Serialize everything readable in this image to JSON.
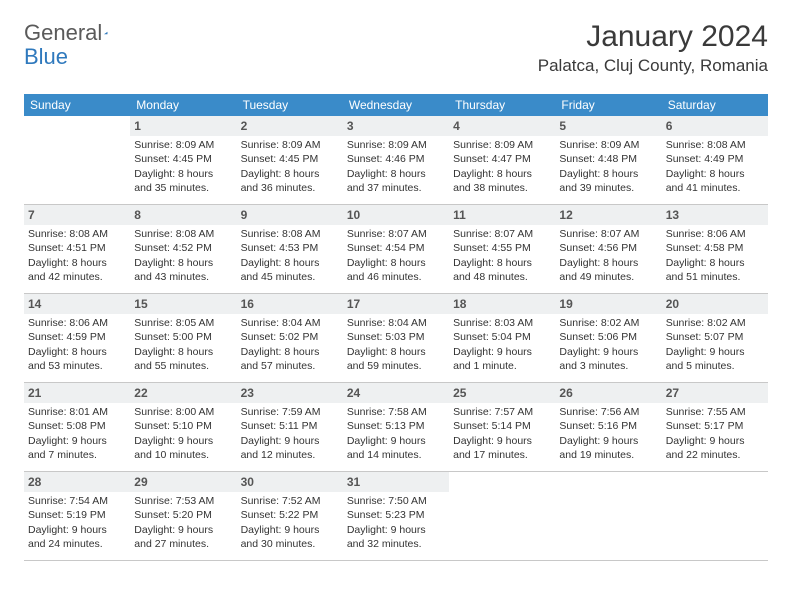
{
  "brand": {
    "part1": "General",
    "part2": "Blue",
    "color": "#2f79bd"
  },
  "title": "January 2024",
  "location": "Palatca, Cluj County, Romania",
  "colors": {
    "header_bg": "#3a8bc9",
    "header_text": "#ffffff",
    "daynum_bg": "#eef0f1",
    "border": "#c8c8c8",
    "text": "#333333"
  },
  "weekdays": [
    "Sunday",
    "Monday",
    "Tuesday",
    "Wednesday",
    "Thursday",
    "Friday",
    "Saturday"
  ],
  "weeks": [
    [
      null,
      {
        "n": "1",
        "sunrise": "8:09 AM",
        "sunset": "4:45 PM",
        "day1": "Daylight: 8 hours",
        "day2": "and 35 minutes."
      },
      {
        "n": "2",
        "sunrise": "8:09 AM",
        "sunset": "4:45 PM",
        "day1": "Daylight: 8 hours",
        "day2": "and 36 minutes."
      },
      {
        "n": "3",
        "sunrise": "8:09 AM",
        "sunset": "4:46 PM",
        "day1": "Daylight: 8 hours",
        "day2": "and 37 minutes."
      },
      {
        "n": "4",
        "sunrise": "8:09 AM",
        "sunset": "4:47 PM",
        "day1": "Daylight: 8 hours",
        "day2": "and 38 minutes."
      },
      {
        "n": "5",
        "sunrise": "8:09 AM",
        "sunset": "4:48 PM",
        "day1": "Daylight: 8 hours",
        "day2": "and 39 minutes."
      },
      {
        "n": "6",
        "sunrise": "8:08 AM",
        "sunset": "4:49 PM",
        "day1": "Daylight: 8 hours",
        "day2": "and 41 minutes."
      }
    ],
    [
      {
        "n": "7",
        "sunrise": "8:08 AM",
        "sunset": "4:51 PM",
        "day1": "Daylight: 8 hours",
        "day2": "and 42 minutes."
      },
      {
        "n": "8",
        "sunrise": "8:08 AM",
        "sunset": "4:52 PM",
        "day1": "Daylight: 8 hours",
        "day2": "and 43 minutes."
      },
      {
        "n": "9",
        "sunrise": "8:08 AM",
        "sunset": "4:53 PM",
        "day1": "Daylight: 8 hours",
        "day2": "and 45 minutes."
      },
      {
        "n": "10",
        "sunrise": "8:07 AM",
        "sunset": "4:54 PM",
        "day1": "Daylight: 8 hours",
        "day2": "and 46 minutes."
      },
      {
        "n": "11",
        "sunrise": "8:07 AM",
        "sunset": "4:55 PM",
        "day1": "Daylight: 8 hours",
        "day2": "and 48 minutes."
      },
      {
        "n": "12",
        "sunrise": "8:07 AM",
        "sunset": "4:56 PM",
        "day1": "Daylight: 8 hours",
        "day2": "and 49 minutes."
      },
      {
        "n": "13",
        "sunrise": "8:06 AM",
        "sunset": "4:58 PM",
        "day1": "Daylight: 8 hours",
        "day2": "and 51 minutes."
      }
    ],
    [
      {
        "n": "14",
        "sunrise": "8:06 AM",
        "sunset": "4:59 PM",
        "day1": "Daylight: 8 hours",
        "day2": "and 53 minutes."
      },
      {
        "n": "15",
        "sunrise": "8:05 AM",
        "sunset": "5:00 PM",
        "day1": "Daylight: 8 hours",
        "day2": "and 55 minutes."
      },
      {
        "n": "16",
        "sunrise": "8:04 AM",
        "sunset": "5:02 PM",
        "day1": "Daylight: 8 hours",
        "day2": "and 57 minutes."
      },
      {
        "n": "17",
        "sunrise": "8:04 AM",
        "sunset": "5:03 PM",
        "day1": "Daylight: 8 hours",
        "day2": "and 59 minutes."
      },
      {
        "n": "18",
        "sunrise": "8:03 AM",
        "sunset": "5:04 PM",
        "day1": "Daylight: 9 hours",
        "day2": "and 1 minute."
      },
      {
        "n": "19",
        "sunrise": "8:02 AM",
        "sunset": "5:06 PM",
        "day1": "Daylight: 9 hours",
        "day2": "and 3 minutes."
      },
      {
        "n": "20",
        "sunrise": "8:02 AM",
        "sunset": "5:07 PM",
        "day1": "Daylight: 9 hours",
        "day2": "and 5 minutes."
      }
    ],
    [
      {
        "n": "21",
        "sunrise": "8:01 AM",
        "sunset": "5:08 PM",
        "day1": "Daylight: 9 hours",
        "day2": "and 7 minutes."
      },
      {
        "n": "22",
        "sunrise": "8:00 AM",
        "sunset": "5:10 PM",
        "day1": "Daylight: 9 hours",
        "day2": "and 10 minutes."
      },
      {
        "n": "23",
        "sunrise": "7:59 AM",
        "sunset": "5:11 PM",
        "day1": "Daylight: 9 hours",
        "day2": "and 12 minutes."
      },
      {
        "n": "24",
        "sunrise": "7:58 AM",
        "sunset": "5:13 PM",
        "day1": "Daylight: 9 hours",
        "day2": "and 14 minutes."
      },
      {
        "n": "25",
        "sunrise": "7:57 AM",
        "sunset": "5:14 PM",
        "day1": "Daylight: 9 hours",
        "day2": "and 17 minutes."
      },
      {
        "n": "26",
        "sunrise": "7:56 AM",
        "sunset": "5:16 PM",
        "day1": "Daylight: 9 hours",
        "day2": "and 19 minutes."
      },
      {
        "n": "27",
        "sunrise": "7:55 AM",
        "sunset": "5:17 PM",
        "day1": "Daylight: 9 hours",
        "day2": "and 22 minutes."
      }
    ],
    [
      {
        "n": "28",
        "sunrise": "7:54 AM",
        "sunset": "5:19 PM",
        "day1": "Daylight: 9 hours",
        "day2": "and 24 minutes."
      },
      {
        "n": "29",
        "sunrise": "7:53 AM",
        "sunset": "5:20 PM",
        "day1": "Daylight: 9 hours",
        "day2": "and 27 minutes."
      },
      {
        "n": "30",
        "sunrise": "7:52 AM",
        "sunset": "5:22 PM",
        "day1": "Daylight: 9 hours",
        "day2": "and 30 minutes."
      },
      {
        "n": "31",
        "sunrise": "7:50 AM",
        "sunset": "5:23 PM",
        "day1": "Daylight: 9 hours",
        "day2": "and 32 minutes."
      },
      null,
      null,
      null
    ]
  ],
  "labels": {
    "sunrise_prefix": "Sunrise: ",
    "sunset_prefix": "Sunset: "
  }
}
